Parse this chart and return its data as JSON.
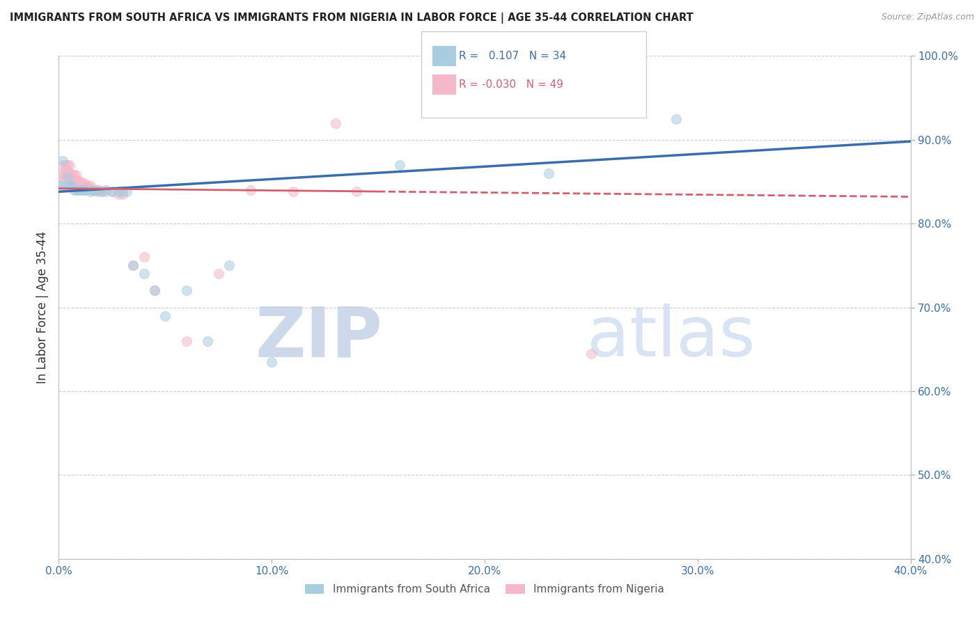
{
  "title": "IMMIGRANTS FROM SOUTH AFRICA VS IMMIGRANTS FROM NIGERIA IN LABOR FORCE | AGE 35-44 CORRELATION CHART",
  "source": "Source: ZipAtlas.com",
  "xlabel": "",
  "ylabel": "In Labor Force | Age 35-44",
  "legend_label1": "Immigrants from South Africa",
  "legend_label2": "Immigrants from Nigeria",
  "R1": 0.107,
  "N1": 34,
  "R2": -0.03,
  "N2": 49,
  "color1": "#a8cce0",
  "color2": "#f4b8c8",
  "trend_color1": "#3a6eaa",
  "trend_color2": "#d06070",
  "xlim": [
    0.0,
    0.4
  ],
  "ylim": [
    0.4,
    1.0
  ],
  "xticks": [
    0.0,
    0.1,
    0.2,
    0.3,
    0.4
  ],
  "yticks": [
    0.4,
    0.5,
    0.6,
    0.7,
    0.8,
    0.9,
    1.0
  ],
  "xtick_labels": [
    "0.0%",
    "10.0%",
    "20.0%",
    "30.0%",
    "40.0%"
  ],
  "ytick_labels": [
    "40.0%",
    "50.0%",
    "60.0%",
    "70.0%",
    "80.0%",
    "90.0%",
    "100.0%"
  ],
  "blue_x": [
    0.001,
    0.002,
    0.003,
    0.004,
    0.005,
    0.005,
    0.006,
    0.007,
    0.008,
    0.009,
    0.01,
    0.011,
    0.012,
    0.013,
    0.015,
    0.016,
    0.018,
    0.02,
    0.022,
    0.025,
    0.028,
    0.03,
    0.032,
    0.035,
    0.04,
    0.045,
    0.05,
    0.06,
    0.07,
    0.08,
    0.1,
    0.16,
    0.23,
    0.29
  ],
  "blue_y": [
    0.845,
    0.875,
    0.845,
    0.855,
    0.845,
    0.845,
    0.845,
    0.84,
    0.84,
    0.84,
    0.84,
    0.84,
    0.84,
    0.84,
    0.838,
    0.84,
    0.838,
    0.838,
    0.84,
    0.838,
    0.838,
    0.838,
    0.838,
    0.75,
    0.74,
    0.72,
    0.69,
    0.72,
    0.66,
    0.75,
    0.635,
    0.87,
    0.86,
    0.925
  ],
  "pink_x": [
    0.001,
    0.001,
    0.002,
    0.002,
    0.003,
    0.003,
    0.003,
    0.004,
    0.004,
    0.004,
    0.005,
    0.005,
    0.005,
    0.006,
    0.006,
    0.006,
    0.007,
    0.007,
    0.008,
    0.008,
    0.008,
    0.009,
    0.009,
    0.01,
    0.011,
    0.012,
    0.013,
    0.014,
    0.015,
    0.016,
    0.017,
    0.018,
    0.019,
    0.02,
    0.022,
    0.025,
    0.028,
    0.03,
    0.035,
    0.04,
    0.045,
    0.06,
    0.075,
    0.09,
    0.11,
    0.14,
    0.18,
    0.25,
    0.13
  ],
  "pink_y": [
    0.85,
    0.855,
    0.87,
    0.86,
    0.87,
    0.865,
    0.858,
    0.87,
    0.862,
    0.858,
    0.87,
    0.86,
    0.855,
    0.858,
    0.852,
    0.848,
    0.858,
    0.85,
    0.858,
    0.852,
    0.848,
    0.852,
    0.845,
    0.85,
    0.848,
    0.848,
    0.845,
    0.845,
    0.845,
    0.84,
    0.84,
    0.84,
    0.84,
    0.838,
    0.838,
    0.838,
    0.835,
    0.835,
    0.75,
    0.76,
    0.72,
    0.66,
    0.74,
    0.84,
    0.838,
    0.838,
    0.975,
    0.645,
    0.92
  ],
  "marker_size": 100,
  "alpha": 0.55,
  "grid_color": "#cccccc",
  "bg_color": "#ffffff",
  "watermark_color": "#c8d4e8",
  "watermark_fontsize": 72
}
